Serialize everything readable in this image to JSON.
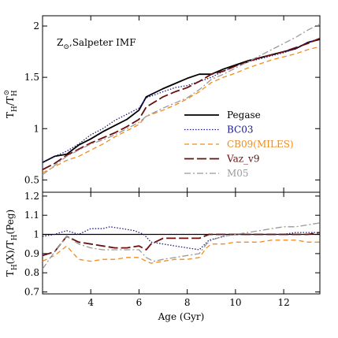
{
  "chart_data": [
    {
      "type": "line",
      "panel": "top",
      "annotation": "Z⊙,Salpeter IMF",
      "ylabel": "T_H/T_H^⊙",
      "xlim": [
        2.0,
        13.5
      ],
      "ylim": [
        0.38,
        2.1
      ],
      "yticks": [
        0.5,
        1.0,
        1.5,
        2.0
      ],
      "yticklabels": [
        "0.5",
        "1",
        "1.5",
        "2"
      ],
      "legend_position": "bottom-right",
      "series": [
        {
          "name": "Pegase",
          "color": "#000000",
          "dash": "",
          "width": 1.8,
          "x": [
            2.0,
            2.5,
            3.0,
            3.5,
            4.0,
            4.5,
            5.0,
            5.5,
            6.0,
            6.3,
            7.0,
            7.5,
            8.0,
            8.5,
            9.0,
            9.5,
            10.0,
            10.5,
            11.0,
            11.5,
            12.0,
            12.5,
            13.0,
            13.5
          ],
          "y": [
            0.67,
            0.73,
            0.75,
            0.84,
            0.9,
            0.97,
            1.03,
            1.09,
            1.18,
            1.31,
            1.39,
            1.44,
            1.49,
            1.53,
            1.53,
            1.58,
            1.62,
            1.66,
            1.69,
            1.72,
            1.75,
            1.78,
            1.84,
            1.87
          ]
        },
        {
          "name": "BC03",
          "color": "#1a1a8c",
          "dash": "1.5,2",
          "width": 1.3,
          "x": [
            2.0,
            2.5,
            3.0,
            3.5,
            4.0,
            4.5,
            5.0,
            5.5,
            6.0,
            6.3,
            7.0,
            7.5,
            8.0,
            8.5,
            9.0,
            9.5,
            10.0,
            10.5,
            11.0,
            11.5,
            12.0,
            12.5,
            13.0,
            13.5
          ],
          "y": [
            0.67,
            0.73,
            0.78,
            0.85,
            0.94,
            1.0,
            1.08,
            1.14,
            1.2,
            1.3,
            1.36,
            1.4,
            1.42,
            1.46,
            1.5,
            1.56,
            1.61,
            1.65,
            1.68,
            1.71,
            1.74,
            1.78,
            1.84,
            1.88
          ]
        },
        {
          "name": "CB09(MILES)",
          "color": "#f28c1a",
          "dash": "6,4",
          "width": 1.3,
          "x": [
            2.0,
            2.5,
            3.0,
            3.5,
            4.0,
            4.5,
            5.0,
            5.5,
            6.0,
            6.3,
            7.0,
            7.5,
            8.0,
            8.5,
            9.0,
            9.5,
            10.0,
            10.5,
            11.0,
            11.5,
            12.0,
            12.5,
            13.0,
            13.5
          ],
          "y": [
            0.57,
            0.63,
            0.69,
            0.73,
            0.79,
            0.85,
            0.92,
            0.98,
            1.04,
            1.12,
            1.18,
            1.23,
            1.29,
            1.36,
            1.45,
            1.5,
            1.54,
            1.59,
            1.63,
            1.67,
            1.7,
            1.73,
            1.77,
            1.8
          ]
        },
        {
          "name": "Vaz_v9",
          "color": "#6b0f0f",
          "dash": "12,4",
          "width": 1.8,
          "x": [
            2.0,
            2.5,
            3.0,
            3.5,
            4.0,
            4.5,
            5.0,
            5.5,
            6.0,
            6.3,
            7.0,
            7.5,
            8.0,
            8.5,
            9.0,
            9.5,
            10.0,
            10.5,
            11.0,
            11.5,
            12.0,
            12.5,
            13.0,
            13.5
          ],
          "y": [
            0.6,
            0.66,
            0.74,
            0.8,
            0.86,
            0.91,
            0.96,
            1.02,
            1.09,
            1.21,
            1.31,
            1.36,
            1.4,
            1.46,
            1.53,
            1.56,
            1.61,
            1.65,
            1.69,
            1.72,
            1.75,
            1.79,
            1.83,
            1.88
          ]
        },
        {
          "name": "M05",
          "color": "#9a9a9a",
          "dash": "8,3,2,3",
          "width": 1.3,
          "x": [
            2.0,
            2.5,
            3.0,
            3.5,
            4.0,
            4.5,
            5.0,
            5.5,
            6.0,
            6.3,
            7.0,
            7.5,
            8.0,
            8.5,
            9.0,
            9.5,
            10.0,
            10.5,
            11.0,
            11.5,
            12.0,
            12.5,
            13.0,
            13.5
          ],
          "y": [
            0.55,
            0.64,
            0.73,
            0.79,
            0.85,
            0.89,
            0.94,
            1.0,
            1.06,
            1.12,
            1.2,
            1.25,
            1.3,
            1.38,
            1.48,
            1.53,
            1.59,
            1.65,
            1.71,
            1.77,
            1.83,
            1.89,
            1.96,
            2.02
          ]
        }
      ]
    },
    {
      "type": "line",
      "panel": "bottom",
      "xlabel": "Age (Gyr)",
      "ylabel": "T_H(X)/T_H(Peg)",
      "xlim": [
        2.0,
        13.5
      ],
      "ylim": [
        0.69,
        1.22
      ],
      "xticks": [
        4,
        6,
        8,
        10,
        12
      ],
      "xticklabels": [
        "4",
        "6",
        "8",
        "10",
        "12"
      ],
      "yticks": [
        0.7,
        0.8,
        0.9,
        1.0,
        1.1,
        1.2
      ],
      "yticklabels": [
        "0.7",
        "0.8",
        "0.9",
        "1",
        "1.1",
        "1.2"
      ],
      "reference_line": 1.0,
      "series": [
        {
          "name": "Pegase",
          "color": "#000000",
          "dash": "",
          "width": 1.2,
          "x": [
            2.0,
            13.5
          ],
          "y": [
            1.0,
            1.0
          ]
        },
        {
          "name": "BC03",
          "color": "#1a1a8c",
          "dash": "1.5,2",
          "width": 1.3,
          "x": [
            2.0,
            2.5,
            3.0,
            3.5,
            4.0,
            4.5,
            4.8,
            5.3,
            5.8,
            6.2,
            6.5,
            7.0,
            7.5,
            8.0,
            8.5,
            8.9,
            9.5,
            10.0,
            10.5,
            11.0,
            11.5,
            12.0,
            12.5,
            13.0,
            13.5
          ],
          "y": [
            0.99,
            1.0,
            1.02,
            1.0,
            1.03,
            1.03,
            1.04,
            1.03,
            1.02,
            1.0,
            0.96,
            0.95,
            0.94,
            0.93,
            0.92,
            0.97,
            0.99,
            1.0,
            1.0,
            1.0,
            1.0,
            1.0,
            1.01,
            1.01,
            1.01
          ]
        },
        {
          "name": "CB09(MILES)",
          "color": "#f28c1a",
          "dash": "6,4",
          "width": 1.3,
          "x": [
            2.0,
            2.5,
            3.0,
            3.5,
            4.0,
            4.5,
            5.0,
            5.5,
            6.0,
            6.3,
            6.5,
            7.0,
            7.5,
            8.0,
            8.5,
            8.8,
            9.0,
            9.5,
            10.0,
            10.5,
            11.0,
            11.5,
            12.0,
            12.5,
            13.0,
            13.5
          ],
          "y": [
            0.86,
            0.89,
            0.94,
            0.87,
            0.86,
            0.87,
            0.87,
            0.88,
            0.88,
            0.86,
            0.85,
            0.86,
            0.87,
            0.87,
            0.88,
            0.93,
            0.95,
            0.95,
            0.96,
            0.96,
            0.96,
            0.97,
            0.97,
            0.97,
            0.96,
            0.96
          ]
        },
        {
          "name": "Vaz_v9",
          "color": "#6b0f0f",
          "dash": "12,4",
          "width": 1.8,
          "x": [
            2.0,
            2.5,
            3.0,
            3.5,
            4.0,
            4.5,
            5.0,
            5.5,
            6.0,
            6.3,
            6.5,
            7.0,
            7.5,
            8.0,
            8.5,
            8.9,
            9.5,
            10.0,
            10.5,
            11.0,
            11.5,
            12.0,
            12.5,
            13.0,
            13.5
          ],
          "y": [
            0.89,
            0.91,
            0.99,
            0.96,
            0.95,
            0.94,
            0.93,
            0.93,
            0.94,
            0.92,
            0.95,
            0.98,
            0.98,
            0.98,
            0.98,
            1.0,
            1.0,
            1.0,
            1.0,
            1.0,
            1.0,
            1.0,
            1.0,
            1.0,
            1.01
          ]
        },
        {
          "name": "M05",
          "color": "#9a9a9a",
          "dash": "8,3,2,3",
          "width": 1.3,
          "x": [
            2.0,
            2.5,
            3.0,
            3.5,
            4.0,
            4.5,
            5.0,
            5.5,
            6.0,
            6.3,
            6.6,
            7.0,
            7.5,
            8.0,
            8.5,
            8.8,
            9.0,
            9.5,
            10.0,
            10.5,
            11.0,
            11.5,
            12.0,
            12.5,
            13.0,
            13.5
          ],
          "y": [
            0.82,
            0.91,
            0.99,
            0.95,
            0.93,
            0.92,
            0.92,
            0.92,
            0.92,
            0.88,
            0.86,
            0.87,
            0.88,
            0.89,
            0.9,
            0.95,
            0.97,
            0.99,
            1.0,
            1.01,
            1.02,
            1.03,
            1.04,
            1.04,
            1.05,
            1.06
          ]
        }
      ]
    }
  ]
}
